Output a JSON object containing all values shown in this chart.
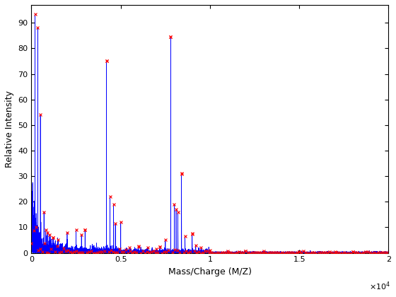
{
  "xlabel": "Mass/Charge (M/Z)",
  "ylabel": "Relative Intensity",
  "xlim": [
    0,
    20000
  ],
  "ylim": [
    0,
    97
  ],
  "xticks": [
    0,
    5000,
    10000,
    15000,
    20000
  ],
  "xticklabels": [
    "0",
    "0.5",
    "1",
    "1.5",
    "2"
  ],
  "yticks": [
    0,
    10,
    20,
    30,
    40,
    50,
    60,
    70,
    80,
    90
  ],
  "line_color": "#0000FF",
  "marker_color": "#FF0000",
  "background_color": "#FFFFFF",
  "figsize": [
    5.6,
    4.2
  ],
  "dpi": 100,
  "seed": 42,
  "peaks": [
    {
      "mz": 200,
      "intensity": 93.5
    },
    {
      "mz": 350,
      "intensity": 88.0
    },
    {
      "mz": 500,
      "intensity": 54.0
    },
    {
      "mz": 700,
      "intensity": 16.0
    },
    {
      "mz": 800,
      "intensity": 9.0
    },
    {
      "mz": 900,
      "intensity": 8.0
    },
    {
      "mz": 1000,
      "intensity": 7.0
    },
    {
      "mz": 1200,
      "intensity": 6.0
    },
    {
      "mz": 1500,
      "intensity": 5.0
    },
    {
      "mz": 2000,
      "intensity": 8.0
    },
    {
      "mz": 2500,
      "intensity": 9.0
    },
    {
      "mz": 2800,
      "intensity": 7.0
    },
    {
      "mz": 3000,
      "intensity": 9.0
    },
    {
      "mz": 4200,
      "intensity": 75.0
    },
    {
      "mz": 4400,
      "intensity": 22.0
    },
    {
      "mz": 4600,
      "intensity": 19.0
    },
    {
      "mz": 4700,
      "intensity": 11.5
    },
    {
      "mz": 5000,
      "intensity": 12.0
    },
    {
      "mz": 5500,
      "intensity": 2.0
    },
    {
      "mz": 6000,
      "intensity": 2.5
    },
    {
      "mz": 6500,
      "intensity": 2.0
    },
    {
      "mz": 7000,
      "intensity": 1.5
    },
    {
      "mz": 7200,
      "intensity": 2.5
    },
    {
      "mz": 7500,
      "intensity": 5.0
    },
    {
      "mz": 7800,
      "intensity": 84.5
    },
    {
      "mz": 8000,
      "intensity": 19.0
    },
    {
      "mz": 8100,
      "intensity": 17.0
    },
    {
      "mz": 8200,
      "intensity": 16.0
    },
    {
      "mz": 8400,
      "intensity": 31.0
    },
    {
      "mz": 8600,
      "intensity": 6.5
    },
    {
      "mz": 9000,
      "intensity": 7.5
    },
    {
      "mz": 9200,
      "intensity": 3.0
    },
    {
      "mz": 9500,
      "intensity": 2.0
    },
    {
      "mz": 10000,
      "intensity": 1.0
    },
    {
      "mz": 11000,
      "intensity": 0.8
    },
    {
      "mz": 12000,
      "intensity": 0.7
    },
    {
      "mz": 13000,
      "intensity": 0.6
    },
    {
      "mz": 15000,
      "intensity": 0.5
    },
    {
      "mz": 17000,
      "intensity": 0.4
    },
    {
      "mz": 18000,
      "intensity": 0.3
    }
  ]
}
